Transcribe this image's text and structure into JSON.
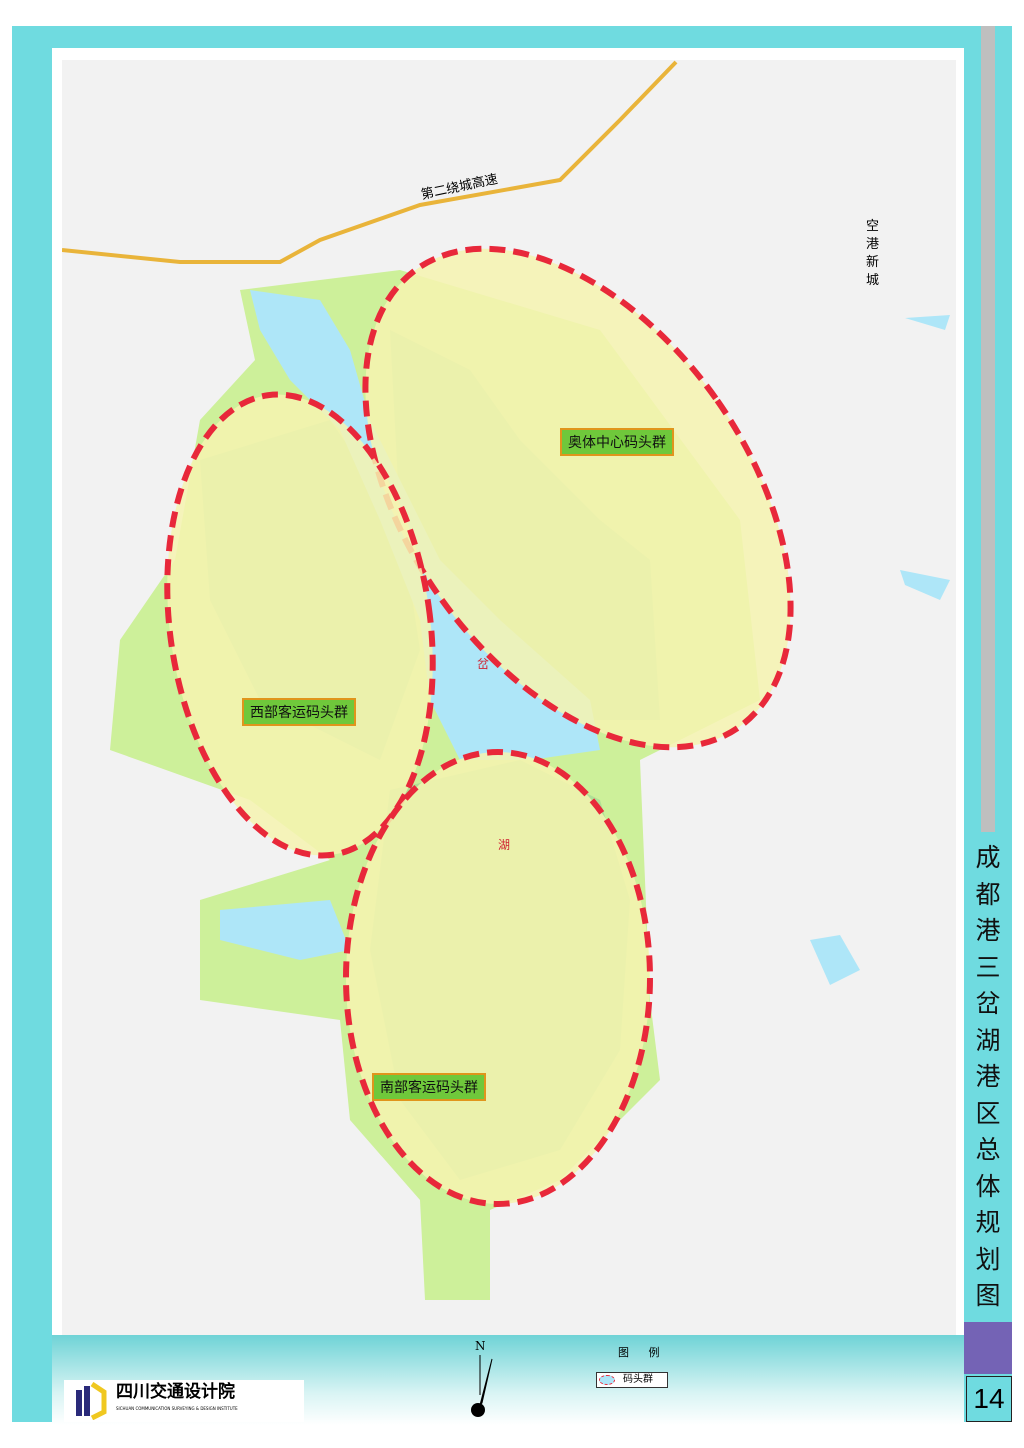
{
  "title": "成都港三岔湖港区总体规划图",
  "page_number": "14",
  "map": {
    "road_label": "第二绕城高速",
    "district_label": "空港新城",
    "lake_char_1": "岔",
    "lake_char_2": "湖",
    "clusters": [
      {
        "label": "奥体中心码头群"
      },
      {
        "label": "西部客运码头群"
      },
      {
        "label": "南部客运码头群"
      }
    ]
  },
  "legend": {
    "title": "图 例",
    "item": "码头群"
  },
  "north_label": "N",
  "logo": {
    "name": "四川交通设计院",
    "subtitle": "SICHUAN COMMUNICATION SURVEYING & DESIGN INSTITUTE"
  },
  "colors": {
    "frame": "#6fdbe0",
    "cluster_fill": "#f6f3b0",
    "cluster_border": "#e8283a",
    "water": "#aee6f8",
    "green": "#cdf09a",
    "label_bg": "#6fc83b",
    "accent": "#7463b5"
  }
}
